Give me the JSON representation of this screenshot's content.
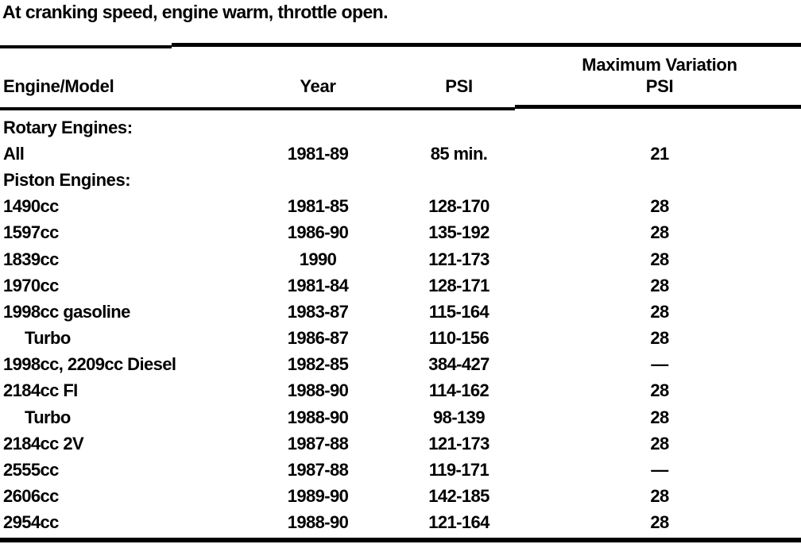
{
  "intro_text": "At cranking speed, engine warm, throttle open.",
  "colors": {
    "text": "#000000",
    "background": "#ffffff",
    "rule": "#000000"
  },
  "table": {
    "headers": {
      "engine_model": "Engine/Model",
      "year": "Year",
      "psi": "PSI",
      "max_variation_line1": "Maximum Variation",
      "max_variation_line2": "PSI"
    },
    "rows": [
      {
        "engine": "Rotary Engines:",
        "year": "",
        "psi": "",
        "max_var": "",
        "section": true,
        "indent": false
      },
      {
        "engine": "All",
        "year": "1981-89",
        "psi": "85 min.",
        "max_var": "21",
        "section": false,
        "indent": false
      },
      {
        "engine": "Piston Engines:",
        "year": "",
        "psi": "",
        "max_var": "",
        "section": true,
        "indent": false
      },
      {
        "engine": "1490cc",
        "year": "1981-85",
        "psi": "128-170",
        "max_var": "28",
        "section": false,
        "indent": false
      },
      {
        "engine": "1597cc",
        "year": "1986-90",
        "psi": "135-192",
        "max_var": "28",
        "section": false,
        "indent": false
      },
      {
        "engine": "1839cc",
        "year": "1990",
        "psi": "121-173",
        "max_var": "28",
        "section": false,
        "indent": false
      },
      {
        "engine": "1970cc",
        "year": "1981-84",
        "psi": "128-171",
        "max_var": "28",
        "section": false,
        "indent": false
      },
      {
        "engine": "1998cc gasoline",
        "year": "1983-87",
        "psi": "115-164",
        "max_var": "28",
        "section": false,
        "indent": false
      },
      {
        "engine": "Turbo",
        "year": "1986-87",
        "psi": "110-156",
        "max_var": "28",
        "section": false,
        "indent": true
      },
      {
        "engine": "1998cc, 2209cc Diesel",
        "year": "1982-85",
        "psi": "384-427",
        "max_var": "—",
        "section": false,
        "indent": false
      },
      {
        "engine": "2184cc FI",
        "year": "1988-90",
        "psi": "114-162",
        "max_var": "28",
        "section": false,
        "indent": false
      },
      {
        "engine": "Turbo",
        "year": "1988-90",
        "psi": "98-139",
        "max_var": "28",
        "section": false,
        "indent": true
      },
      {
        "engine": "2184cc 2V",
        "year": "1987-88",
        "psi": "121-173",
        "max_var": "28",
        "section": false,
        "indent": false
      },
      {
        "engine": "2555cc",
        "year": "1987-88",
        "psi": "119-171",
        "max_var": "—",
        "section": false,
        "indent": false
      },
      {
        "engine": "2606cc",
        "year": "1989-90",
        "psi": "142-185",
        "max_var": "28",
        "section": false,
        "indent": false
      },
      {
        "engine": "2954cc",
        "year": "1988-90",
        "psi": "121-164",
        "max_var": "28",
        "section": false,
        "indent": false
      }
    ]
  }
}
